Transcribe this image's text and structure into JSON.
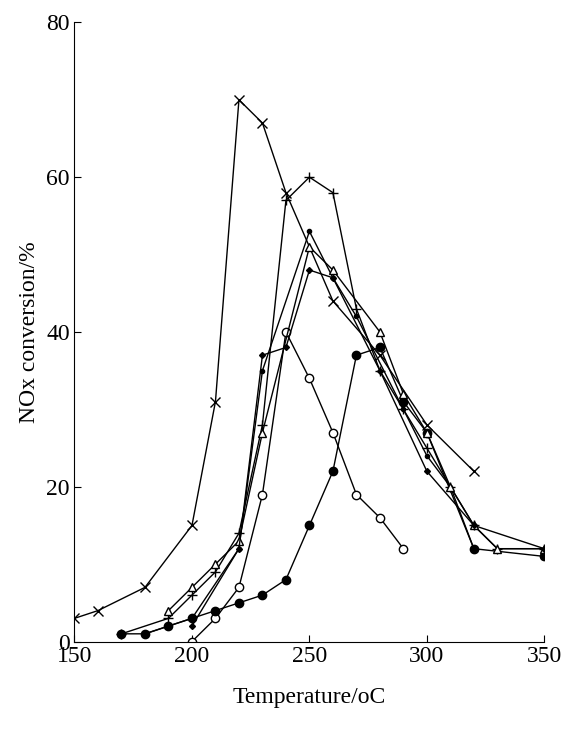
{
  "chart_data": {
    "type": "line",
    "x_label": "Temperature/oC",
    "y_label": "NOx conversion/%",
    "xlim": [
      150,
      350
    ],
    "xticks": [
      150,
      200,
      250,
      300,
      350
    ],
    "ylim": [
      0,
      80
    ],
    "yticks": [
      0,
      20,
      40,
      60,
      80
    ],
    "grid": false,
    "series": [
      {
        "color": "#000000",
        "marker": "x",
        "line_style": "solid",
        "x": [
          150,
          160,
          180,
          200,
          210,
          220,
          230,
          240,
          260,
          280,
          300,
          320
        ],
        "values": [
          3,
          4,
          7,
          15,
          31,
          70,
          67,
          58,
          44,
          37,
          28,
          22
        ]
      },
      {
        "color": "#000000",
        "marker": "circle_open",
        "line_style": "solid",
        "x": [
          200,
          210,
          220,
          230,
          240,
          250,
          260,
          270,
          280,
          290
        ],
        "values": [
          0,
          3,
          7,
          19,
          40,
          34,
          27,
          19,
          16,
          12
        ]
      },
      {
        "color": "#000000",
        "marker": "circle",
        "line_style": "solid",
        "x": [
          170,
          180,
          190,
          200,
          210,
          220,
          230,
          240,
          250,
          260,
          270,
          280,
          290,
          300,
          320,
          350
        ],
        "values": [
          1,
          1,
          2,
          3,
          4,
          5,
          6,
          8,
          15,
          22,
          37,
          38,
          31,
          27,
          12,
          11
        ]
      },
      {
        "color": "#000000",
        "marker": "plus",
        "line_style": "solid",
        "x": [
          170,
          190,
          200,
          210,
          220,
          230,
          240,
          250,
          260,
          270,
          280,
          290,
          300,
          310,
          320,
          330,
          350
        ],
        "values": [
          1,
          3,
          6,
          9,
          14,
          28,
          57,
          60,
          58,
          43,
          35,
          30,
          25,
          20,
          15,
          12,
          12
        ]
      },
      {
        "color": "#000000",
        "marker": "dot",
        "line_style": "solid",
        "x": [
          180,
          200,
          220,
          230,
          250,
          260,
          270,
          290,
          300,
          310,
          320
        ],
        "values": [
          1,
          3,
          12,
          35,
          53,
          47,
          42,
          30,
          24,
          20,
          12
        ]
      },
      {
        "color": "#000000",
        "marker": "triangle_open",
        "line_style": "solid",
        "x": [
          190,
          200,
          210,
          220,
          230,
          250,
          260,
          280,
          290,
          300,
          310,
          320,
          330,
          350
        ],
        "values": [
          4,
          7,
          10,
          13,
          27,
          51,
          48,
          40,
          32,
          27,
          20,
          15,
          12,
          12
        ]
      },
      {
        "color": "#000000",
        "marker": "diamond",
        "line_style": "solid",
        "x": [
          200,
          220,
          230,
          240,
          250,
          260,
          280,
          300,
          320,
          350
        ],
        "values": [
          2,
          12,
          37,
          38,
          48,
          47,
          35,
          22,
          15,
          12
        ]
      }
    ]
  }
}
